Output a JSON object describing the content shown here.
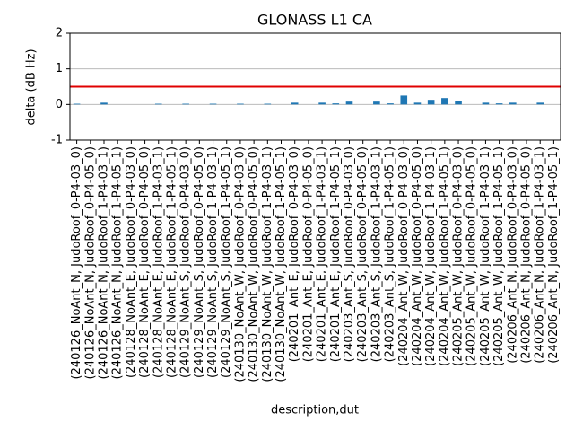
{
  "chart_data": {
    "type": "bar",
    "title": "GLONASS L1 CA",
    "xlabel": "description,dut",
    "ylabel": "delta (dB Hz)",
    "categories": [
      "(240126_NoAnt_N, JudoRoof_0-P4-03_0)",
      "(240126_NoAnt_N, JudoRoof_0-P4-05_0)",
      "(240126_NoAnt_N, JudoRoof_1-P4-03_1)",
      "(240126_NoAnt_N, JudoRoof_1-P4-05_1)",
      "(240128_NoAnt_E, JudoRoof_0-P4-03_0)",
      "(240128_NoAnt_E, JudoRoof_0-P4-05_0)",
      "(240128_NoAnt_E, JudoRoof_1-P4-03_1)",
      "(240128_NoAnt_E, JudoRoof_1-P4-05_1)",
      "(240129_NoAnt_S, JudoRoof_0-P4-03_0)",
      "(240129_NoAnt_S, JudoRoof_0-P4-05_0)",
      "(240129_NoAnt_S, JudoRoof_1-P4-03_1)",
      "(240129_NoAnt_S, JudoRoof_1-P4-05_1)",
      "(240130_NoAnt_W, JudoRoof_0-P4-03_0)",
      "(240130_NoAnt_W, JudoRoof_0-P4-05_0)",
      "(240130_NoAnt_W, JudoRoof_1-P4-03_1)",
      "(240130_NoAnt_W, JudoRoof_1-P4-05_1)",
      "(240201_Ant_E, JudoRoof_0-P4-03_0)",
      "(240201_Ant_E, JudoRoof_0-P4-05_0)",
      "(240201_Ant_E, JudoRoof_1-P4-03_1)",
      "(240201_Ant_E, JudoRoof_1-P4-05_1)",
      "(240203_Ant_S, JudoRoof_0-P4-03_0)",
      "(240203_Ant_S, JudoRoof_0-P4-05_0)",
      "(240203_Ant_S, JudoRoof_1-P4-03_1)",
      "(240203_Ant_S, JudoRoof_1-P4-05_1)",
      "(240204_Ant_W, JudoRoof_0-P4-03_0)",
      "(240204_Ant_W, JudoRoof_0-P4-05_0)",
      "(240204_Ant_W, JudoRoof_1-P4-03_1)",
      "(240204_Ant_W, JudoRoof_1-P4-05_1)",
      "(240205_Ant_W, JudoRoof_0-P4-03_0)",
      "(240205_Ant_W, JudoRoof_0-P4-05_0)",
      "(240205_Ant_W, JudoRoof_1-P4-03_1)",
      "(240205_Ant_W, JudoRoof_1-P4-05_1)",
      "(240206_Ant_N, JudoRoof_0-P4-03_0)",
      "(240206_Ant_N, JudoRoof_0-P4-05_0)",
      "(240206_Ant_N, JudoRoof_1-P4-03_1)",
      "(240206_Ant_N, JudoRoof_1-P4-05_1)"
    ],
    "values": [
      0.02,
      0,
      0.05,
      0,
      0,
      0,
      0.02,
      0,
      0.02,
      0,
      0.02,
      0,
      0.02,
      0,
      0.02,
      0,
      0.05,
      0,
      0.05,
      0.03,
      0.08,
      0,
      0.08,
      0.03,
      0.25,
      0.05,
      0.13,
      0.18,
      0.1,
      0,
      0.05,
      0.03,
      0.05,
      0,
      0.05,
      0
    ],
    "color": "#1f77b4",
    "ylim": [
      -1,
      2
    ],
    "yticks": [
      -1,
      0,
      1,
      2
    ],
    "grid": true,
    "hline": {
      "value": 0.5,
      "color": "#e00000"
    }
  }
}
